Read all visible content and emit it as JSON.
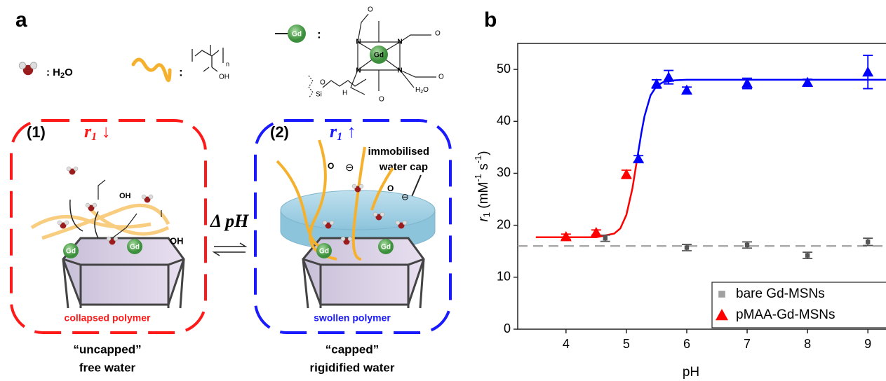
{
  "panel_a": {
    "label": "a",
    "water_key": [
      ": H",
      "2",
      "O"
    ],
    "polymer_key": ":",
    "polymer_n": "n",
    "polymer_oh": "OH",
    "gd_key": ":",
    "gd_label": "Gd",
    "complex": {
      "n": "N",
      "o": "O",
      "si": "Si",
      "h": "H",
      "water": [
        "H",
        "2",
        "O"
      ]
    },
    "left": {
      "number": "(1)",
      "r": [
        "r",
        "1",
        " ↓"
      ],
      "oh": "OH",
      "caption": "collapsed polymer",
      "state": "“uncapped”",
      "water": "free water"
    },
    "right": {
      "number": "(2)",
      "r": [
        "r",
        "1",
        " ↑"
      ],
      "cap": [
        "immobilised",
        "water cap"
      ],
      "o": "O",
      "charge": "⊖",
      "caption": "swollen polymer",
      "state": "“capped”",
      "water": "rigidified water"
    },
    "delta": "Δ pH"
  },
  "chart_data": {
    "type": "scatter",
    "label": "b",
    "xlabel": "pH",
    "ylabel": [
      "r",
      "1",
      " (mM",
      "-1",
      " s",
      "-1",
      ")"
    ],
    "xlim": [
      3.2,
      9.3
    ],
    "ylim": [
      0,
      55
    ],
    "xticks": [
      4,
      5,
      6,
      7,
      8,
      9
    ],
    "yticks": [
      0,
      10,
      20,
      30,
      40,
      50
    ],
    "reference_line": {
      "value": 16,
      "color": "#aaaaaa"
    },
    "legend": "lower right",
    "series": [
      {
        "name": "bare Gd-MSNs",
        "marker": "square",
        "color": "#a0a0a0",
        "x": [
          4.65,
          6,
          7,
          8,
          9
        ],
        "values": [
          17.5,
          15.7,
          16.2,
          14.2,
          16.8
        ],
        "errors": [
          0.6,
          0.6,
          0.6,
          0.6,
          0.7
        ],
        "colors": [
          "#555555",
          "#555555",
          "#555555",
          "#555555",
          "#555555"
        ]
      },
      {
        "name": "pMAA-Gd-MSNs",
        "marker": "triangle",
        "color": "#ff0000",
        "x": [
          4,
          4.5,
          5,
          5.2,
          5.5,
          5.7,
          6,
          7,
          8,
          9
        ],
        "values": [
          17.8,
          18.6,
          29.8,
          32.8,
          47.2,
          48.5,
          46,
          47.3,
          47.5,
          49.5
        ],
        "errors": [
          0.5,
          0.5,
          0.8,
          0.6,
          0.8,
          1.3,
          0.6,
          1,
          0.6,
          3.2
        ],
        "colors": [
          "#ff0000",
          "#ff0000",
          "#ff0000",
          "#0000ff",
          "#0000ff",
          "#0000ff",
          "#0000ff",
          "#0000ff",
          "#0000ff",
          "#0000ff"
        ]
      }
    ],
    "fits": [
      {
        "color": "#ff0000",
        "x": [
          3.5,
          4.5,
          4.8,
          4.9,
          5.0,
          5.1,
          5.18
        ],
        "values": [
          17.7,
          17.7,
          18.4,
          19.4,
          22.0,
          27.1,
          32.9
        ]
      },
      {
        "color": "#0000ff",
        "x": [
          5.18,
          5.25,
          5.3,
          5.4,
          5.5,
          5.6,
          5.8,
          6,
          9.3
        ],
        "values": [
          32.9,
          37.9,
          41.0,
          45.0,
          46.8,
          47.5,
          47.9,
          48.0,
          48.0
        ]
      }
    ]
  }
}
